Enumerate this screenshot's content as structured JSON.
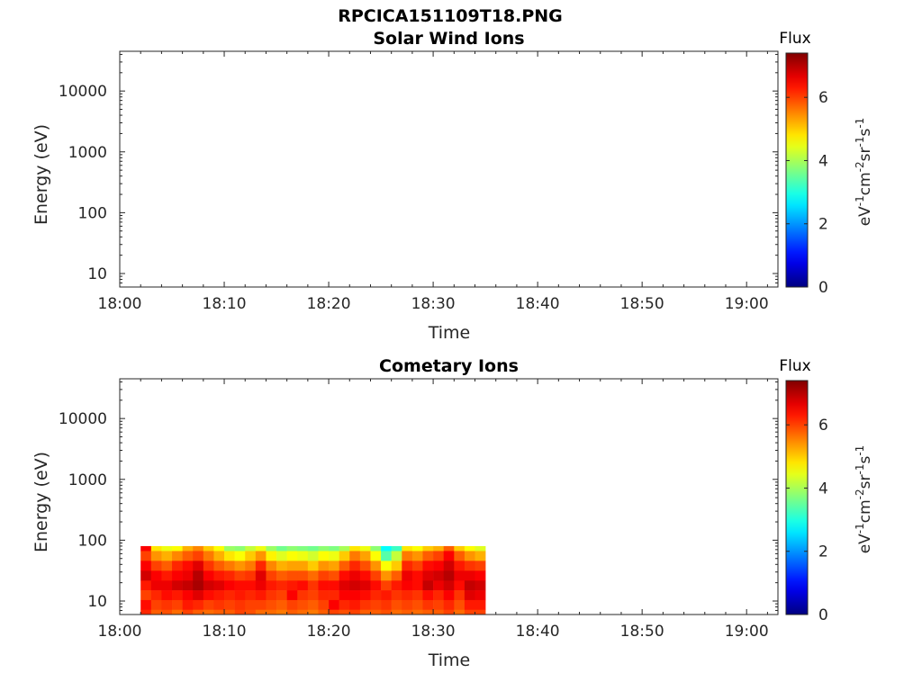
{
  "figure": {
    "filename": "RPCICA151109T18.PNG"
  },
  "colors": {
    "axis": "#262626",
    "colormap": "jet",
    "empty_fill": "#ffffff"
  },
  "chart_data": [
    {
      "type": "heatmap",
      "title": "Solar Wind Ions",
      "xlabel": "Time",
      "ylabel": "Energy (eV)",
      "y_scale": "log",
      "y_ticks": [
        10,
        100,
        1000,
        10000
      ],
      "y_tick_labels": [
        "10",
        "100",
        "1000",
        "10000"
      ],
      "ylim": [
        6,
        45000
      ],
      "x_tick_labels": [
        "18:00",
        "18:10",
        "18:20",
        "18:30",
        "18:40",
        "18:50",
        "19:00"
      ],
      "xlim": [
        "18:00",
        "19:03"
      ],
      "colorbar": {
        "label": "Flux",
        "units": "eV^-1 cm^-2 sr^-1 s^-1",
        "range": [
          0,
          7.4
        ],
        "ticks": [
          0,
          2,
          4,
          6
        ],
        "tick_labels": [
          "0",
          "2",
          "4",
          "6"
        ]
      },
      "data": []
    },
    {
      "type": "heatmap",
      "title": "Cometary Ions",
      "xlabel": "Time",
      "ylabel": "Energy (eV)",
      "y_scale": "log",
      "y_ticks": [
        10,
        100,
        1000,
        10000
      ],
      "y_tick_labels": [
        "10",
        "100",
        "1000",
        "10000"
      ],
      "ylim": [
        6,
        45000
      ],
      "x_tick_labels": [
        "18:00",
        "18:10",
        "18:20",
        "18:30",
        "18:40",
        "18:50",
        "19:00"
      ],
      "xlim": [
        "18:00",
        "19:03"
      ],
      "colorbar": {
        "label": "Flux",
        "units": "eV^-1 cm^-2 sr^-1 s^-1",
        "range": [
          0,
          7.4
        ],
        "ticks": [
          0,
          2,
          4,
          6
        ],
        "tick_labels": [
          "0",
          "2",
          "4",
          "6"
        ]
      },
      "data_time_range": [
        "18:02",
        "18:34"
      ],
      "data_energy_range": [
        6,
        80
      ],
      "time_samples": [
        "18:02",
        "18:03",
        "18:04",
        "18:05",
        "18:06",
        "18:07",
        "18:08",
        "18:09",
        "18:10",
        "18:11",
        "18:12",
        "18:13",
        "18:14",
        "18:15",
        "18:16",
        "18:17",
        "18:18",
        "18:19",
        "18:20",
        "18:21",
        "18:22",
        "18:23",
        "18:24",
        "18:25",
        "18:26",
        "18:27",
        "18:28",
        "18:29",
        "18:30",
        "18:31",
        "18:32",
        "18:33",
        "18:34"
      ],
      "energy_bins": [
        80,
        55,
        38,
        26,
        18,
        12.5,
        8.6,
        6
      ],
      "flux_grid": [
        [
          6.5,
          6.0,
          6.5,
          6.8,
          6.3,
          6.0,
          6.4,
          6.2
        ],
        [
          4.8,
          5.4,
          6.0,
          6.5,
          6.6,
          6.2,
          6.0,
          5.8
        ],
        [
          4.5,
          5.2,
          5.8,
          6.3,
          6.6,
          6.4,
          6.1,
          5.9
        ],
        [
          4.6,
          5.5,
          6.2,
          6.5,
          6.8,
          6.3,
          6.0,
          5.7
        ],
        [
          5.2,
          5.8,
          6.4,
          6.6,
          6.9,
          6.5,
          6.3,
          6.0
        ],
        [
          5.5,
          6.0,
          6.7,
          7.0,
          7.1,
          6.7,
          6.2,
          5.8
        ],
        [
          5.0,
          5.6,
          6.1,
          6.5,
          6.8,
          6.4,
          6.0,
          5.7
        ],
        [
          4.6,
          5.2,
          5.8,
          6.3,
          6.7,
          6.3,
          6.1,
          5.8
        ],
        [
          3.9,
          4.8,
          5.6,
          6.2,
          6.5,
          6.2,
          6.0,
          5.8
        ],
        [
          3.8,
          4.6,
          5.4,
          6.0,
          6.4,
          6.3,
          6.1,
          6.0
        ],
        [
          4.2,
          5.0,
          5.6,
          6.1,
          6.4,
          6.2,
          6.0,
          5.9
        ],
        [
          4.5,
          5.4,
          6.2,
          6.7,
          6.6,
          6.3,
          6.0,
          5.7
        ],
        [
          3.9,
          4.7,
          5.5,
          6.0,
          6.3,
          6.1,
          5.9,
          5.7
        ],
        [
          3.6,
          4.4,
          5.2,
          5.8,
          6.2,
          6.0,
          5.8,
          5.6
        ],
        [
          3.8,
          4.6,
          5.3,
          5.9,
          6.3,
          6.5,
          6.0,
          5.8
        ],
        [
          3.7,
          4.5,
          5.3,
          5.9,
          6.4,
          6.1,
          5.9,
          5.7
        ],
        [
          3.6,
          4.3,
          5.0,
          5.7,
          6.1,
          6.0,
          5.8,
          5.6
        ],
        [
          3.8,
          4.6,
          5.4,
          6.0,
          6.4,
          6.2,
          6.0,
          5.8
        ],
        [
          3.7,
          4.5,
          5.3,
          5.9,
          6.4,
          6.2,
          6.5,
          6.0
        ],
        [
          4.0,
          5.0,
          5.8,
          6.4,
          6.7,
          6.5,
          6.2,
          5.9
        ],
        [
          4.8,
          5.6,
          6.2,
          6.6,
          6.8,
          6.5,
          6.3,
          6.0
        ],
        [
          4.5,
          5.3,
          5.9,
          6.4,
          6.7,
          6.4,
          6.1,
          5.8
        ],
        [
          3.8,
          4.6,
          5.4,
          6.0,
          6.4,
          6.2,
          6.0,
          5.8
        ],
        [
          2.8,
          3.4,
          4.6,
          5.4,
          6.0,
          6.3,
          6.1,
          5.9
        ],
        [
          3.2,
          4.2,
          5.0,
          5.8,
          6.3,
          6.1,
          5.9,
          5.7
        ],
        [
          4.8,
          5.6,
          6.2,
          6.6,
          6.5,
          6.2,
          6.0,
          5.8
        ],
        [
          4.6,
          5.4,
          6.0,
          6.4,
          6.4,
          6.1,
          5.9,
          5.7
        ],
        [
          5.0,
          5.8,
          6.4,
          6.7,
          6.9,
          6.4,
          6.1,
          5.8
        ],
        [
          5.2,
          6.0,
          6.5,
          6.8,
          6.6,
          6.2,
          6.0,
          5.8
        ],
        [
          5.8,
          6.5,
          6.8,
          7.0,
          6.8,
          6.5,
          6.2,
          6.0
        ],
        [
          5.0,
          5.8,
          6.3,
          6.6,
          6.4,
          6.1,
          5.9,
          5.7
        ],
        [
          4.6,
          5.4,
          6.1,
          6.6,
          6.9,
          6.7,
          6.3,
          6.0
        ],
        [
          4.4,
          5.2,
          6.0,
          6.5,
          6.8,
          6.6,
          6.3,
          6.0
        ]
      ]
    }
  ]
}
